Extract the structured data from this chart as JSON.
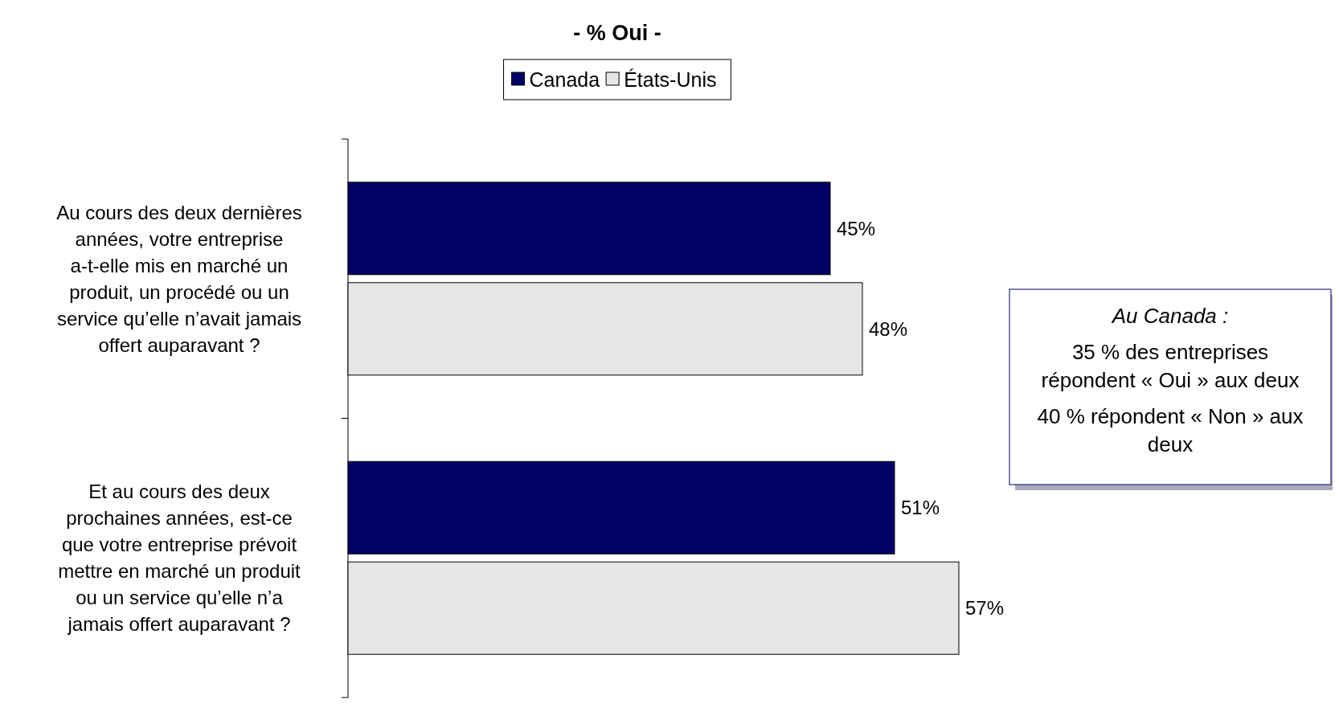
{
  "chart_data": {
    "type": "bar",
    "orientation": "horizontal",
    "title": "- % Oui -",
    "categories": [
      "Au cours des deux dernières années, votre entreprise a-t-elle mis en marché un produit, un procédé ou un service qu’elle n’avait jamais offert auparavant ?",
      "Et au cours des deux prochaines années, est-ce que votre entreprise prévoit mettre en marché un produit ou un service qu’elle n’a jamais offert auparavant ?"
    ],
    "series": [
      {
        "name": "Canada",
        "color": "#000066",
        "values": [
          45,
          51
        ],
        "value_labels": [
          "45%",
          "51%"
        ]
      },
      {
        "name": "États-Unis",
        "color": "#e6e6e6",
        "values": [
          48,
          57
        ],
        "value_labels": [
          "48%",
          "57%"
        ]
      }
    ],
    "legend": "top",
    "annotations": [
      "Au Canada :",
      "35 % des entreprises répondent « Oui » aux deux",
      "40 % répondent « Non » aux deux"
    ]
  }
}
